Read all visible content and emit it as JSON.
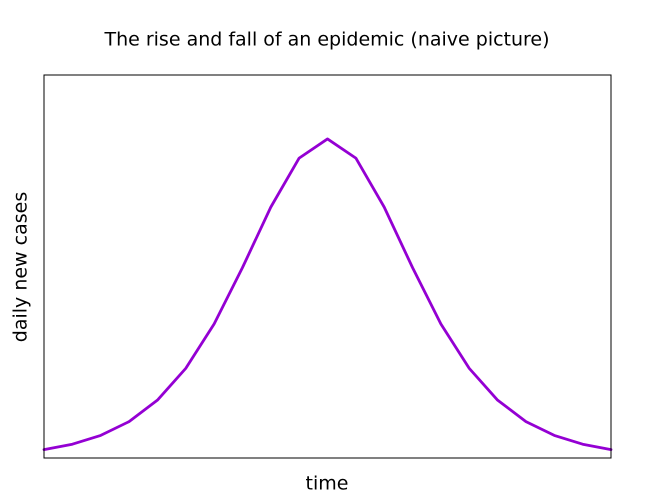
{
  "chart_data": {
    "type": "line",
    "title": "The rise and fall of an epidemic (naive picture)",
    "x_label": "time",
    "y_label": "daily new cases",
    "x": [
      0,
      5,
      10,
      15,
      20,
      25,
      30,
      35,
      40,
      45,
      50,
      55,
      60,
      65,
      70,
      75,
      80,
      85,
      90,
      95,
      100
    ],
    "series": [
      {
        "name": "daily new cases",
        "color": "#9400d3",
        "values": [
          2.2,
          3.6,
          5.9,
          9.5,
          15.1,
          23.4,
          35.0,
          49.7,
          65.5,
          78.3,
          83.3,
          78.3,
          65.5,
          49.7,
          35.0,
          23.4,
          15.1,
          9.5,
          5.9,
          3.6,
          2.2
        ]
      }
    ],
    "xlim": [
      0,
      100
    ],
    "ylim": [
      0,
      100
    ],
    "grid": false,
    "legend": false
  }
}
